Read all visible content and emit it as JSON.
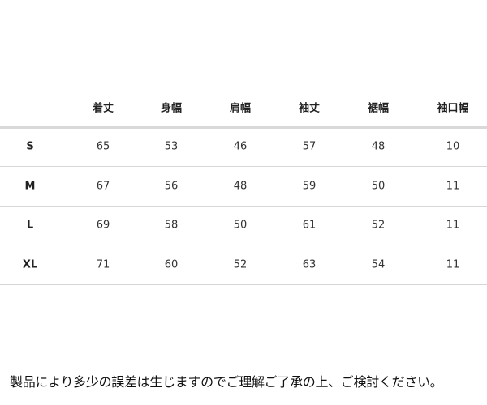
{
  "table": {
    "columns": [
      "着丈",
      "身幅",
      "肩幅",
      "袖丈",
      "裾幅",
      "袖口幅"
    ],
    "rows": [
      {
        "size": "S",
        "values": [
          "65",
          "53",
          "46",
          "57",
          "48",
          "10"
        ]
      },
      {
        "size": "M",
        "values": [
          "67",
          "56",
          "48",
          "59",
          "50",
          "11"
        ]
      },
      {
        "size": "L",
        "values": [
          "69",
          "58",
          "50",
          "61",
          "52",
          "11"
        ]
      },
      {
        "size": "XL",
        "values": [
          "71",
          "60",
          "52",
          "63",
          "54",
          "11"
        ]
      }
    ]
  },
  "note": "製品により多少の誤差は生じますのでご理解ご了承の上、ご検討ください。"
}
